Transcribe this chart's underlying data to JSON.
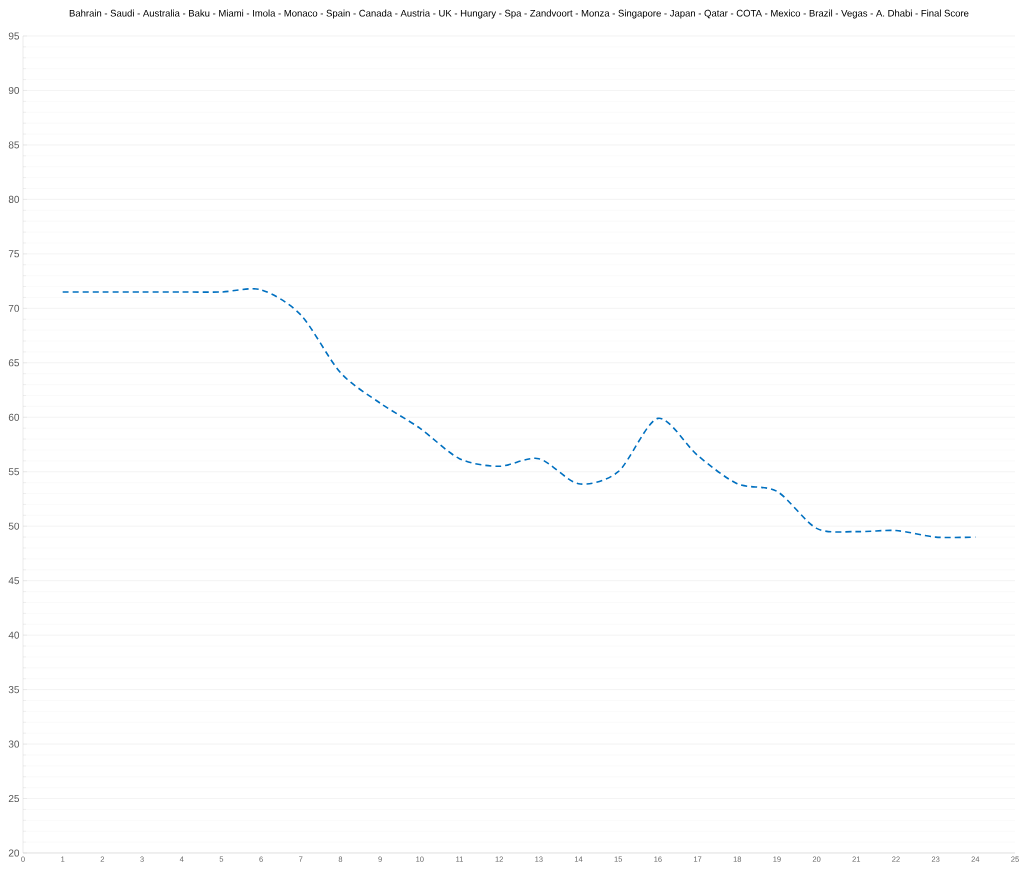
{
  "chart_data": {
    "type": "line",
    "title": "Bahrain - Saudi - Australia -   Baku   -  Miami  - Imola - Monaco -  Spain  - Canada -  Austria  -  UK  - Hungary -  Spa  - Zandvoort - Monza - Singapore - Japan -  Qatar  - COTA - Mexico -   Brazil   - Vegas - A. Dhabi - Final Score",
    "x": [
      1,
      2,
      3,
      4,
      5,
      6,
      7,
      8,
      9,
      10,
      11,
      12,
      13,
      14,
      15,
      16,
      17,
      18,
      19,
      20,
      21,
      22,
      23,
      24
    ],
    "series": [
      {
        "color": "#0070c0",
        "values": [
          71.5,
          71.5,
          71.5,
          71.5,
          71.5,
          71.7,
          69.4,
          64.1,
          61.3,
          59.0,
          56.2,
          55.5,
          56.2,
          53.9,
          55.0,
          59.9,
          56.5,
          53.9,
          53.2,
          49.8,
          49.5,
          49.6,
          49.0,
          49.0
        ]
      }
    ],
    "xlim": [
      0,
      25
    ],
    "xticks": [
      0,
      1,
      2,
      3,
      4,
      5,
      6,
      7,
      8,
      9,
      10,
      11,
      12,
      13,
      14,
      15,
      16,
      17,
      18,
      19,
      20,
      21,
      22,
      23,
      24,
      25
    ],
    "ylim": [
      20,
      95
    ],
    "yticks": [
      20,
      25,
      30,
      35,
      40,
      45,
      50,
      55,
      60,
      65,
      70,
      75,
      80,
      85,
      90,
      95
    ],
    "grid": "y",
    "marker": "none",
    "line_style": "dashed"
  }
}
